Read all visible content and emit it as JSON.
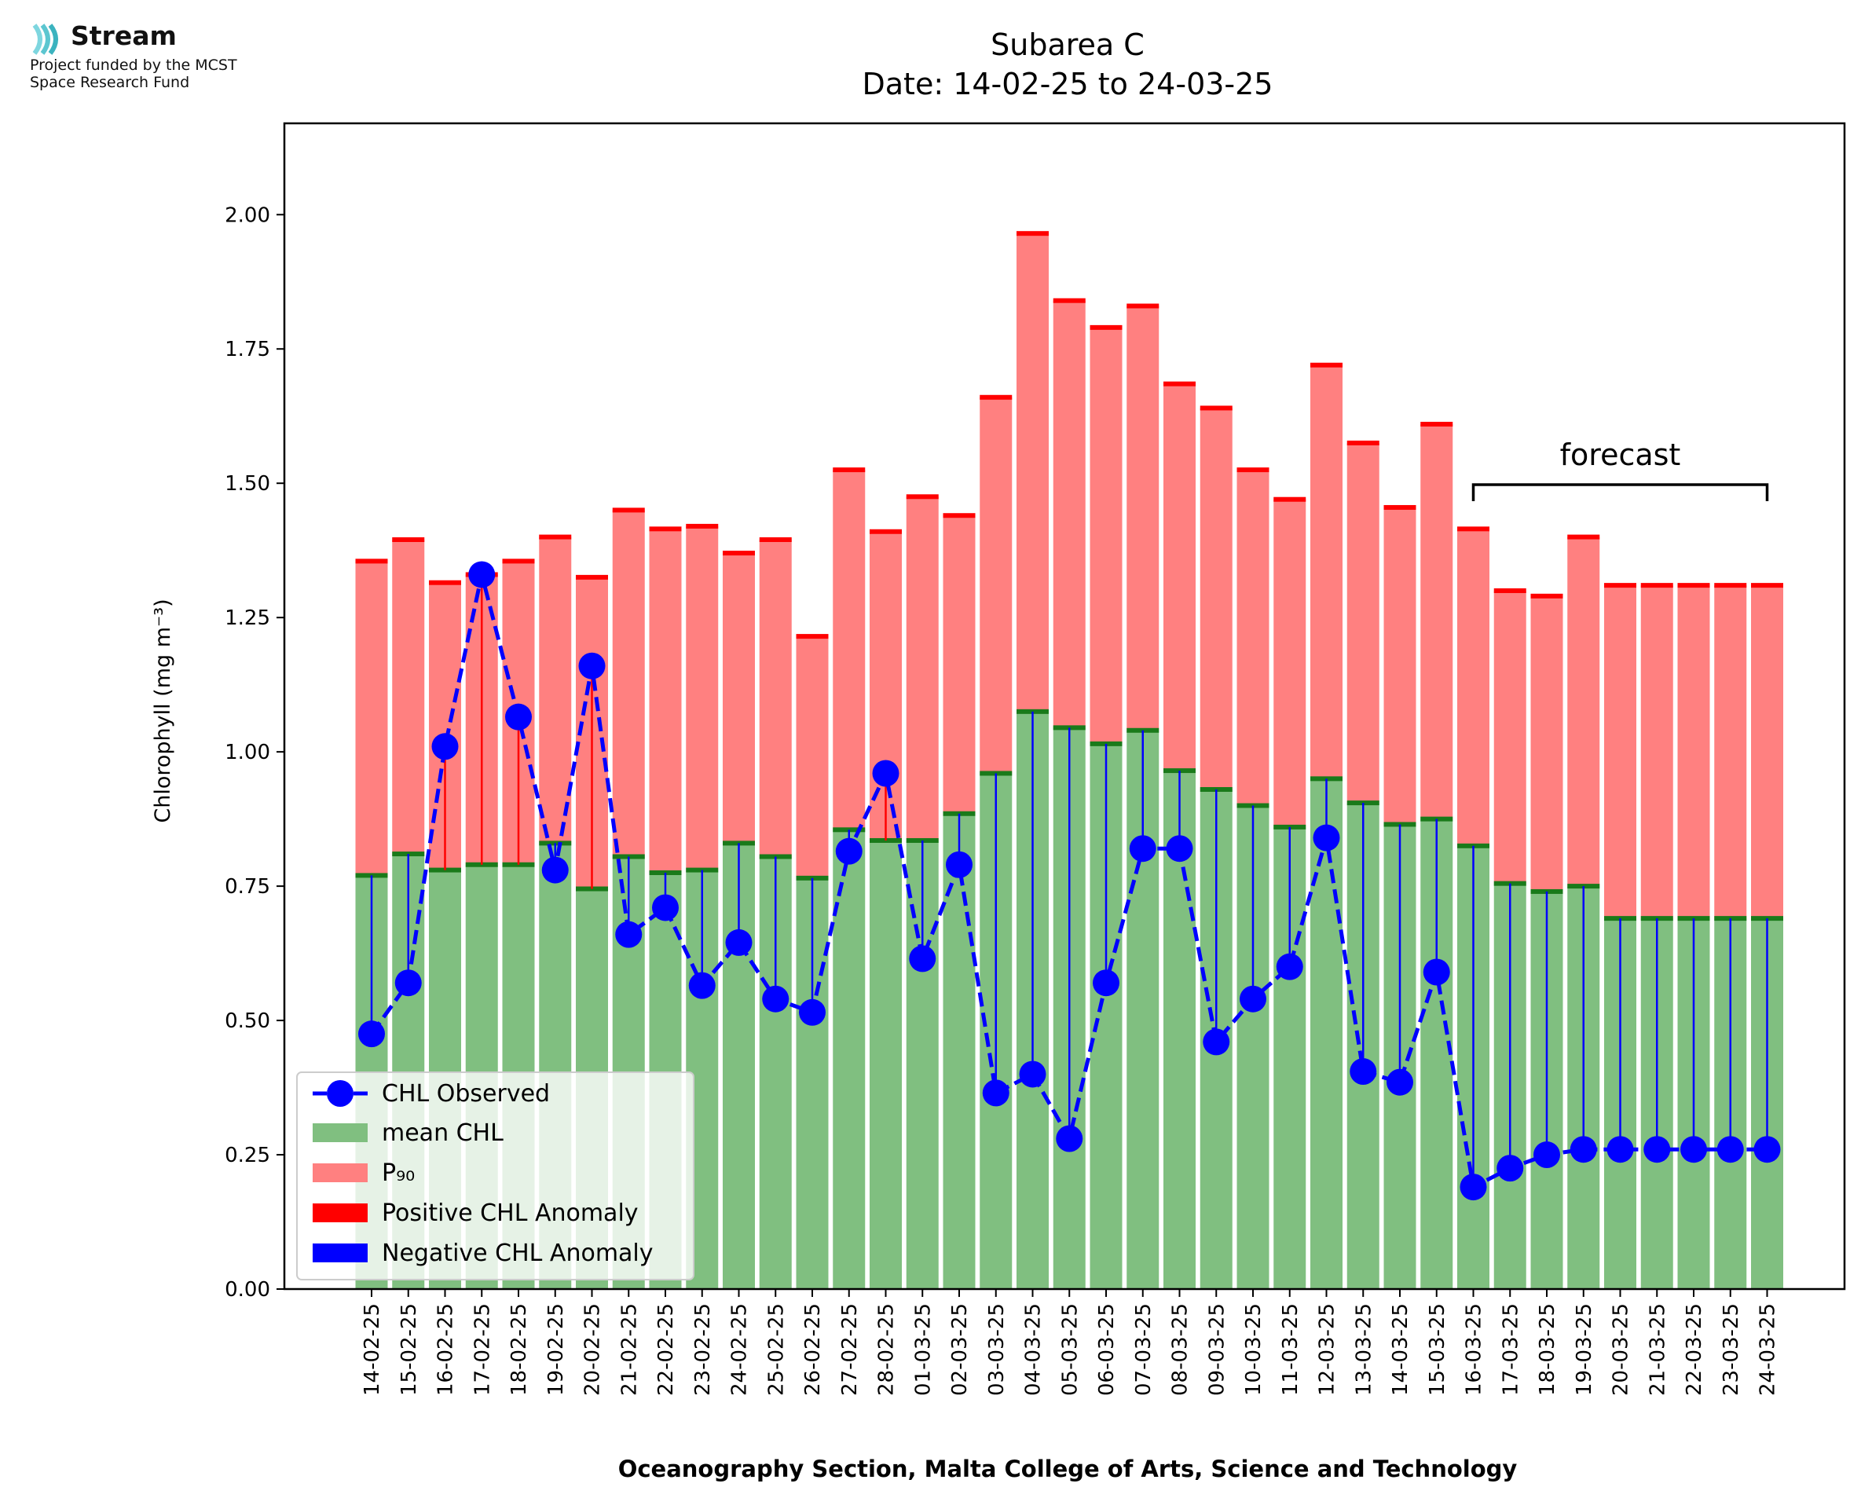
{
  "logo": {
    "name": "Stream",
    "line1": "Project funded by the MCST",
    "line2": "Space Research Fund"
  },
  "chart_data": {
    "type": "bar",
    "title": "Subarea C",
    "subtitle": "Date: 14-02-25 to 24-03-25",
    "xlabel": "Oceanography Section, Malta College of Arts, Science and Technology",
    "ylabel": "Chlorophyll (mg m⁻³)",
    "ylim": [
      0,
      2.17
    ],
    "yticks": [
      "0.00",
      "0.25",
      "0.50",
      "0.75",
      "1.00",
      "1.25",
      "1.50",
      "1.75",
      "2.00"
    ],
    "grid": false,
    "legend_position": "lower-left",
    "categories": [
      "14-02-25",
      "15-02-25",
      "16-02-25",
      "17-02-25",
      "18-02-25",
      "19-02-25",
      "20-02-25",
      "21-02-25",
      "22-02-25",
      "23-02-25",
      "24-02-25",
      "25-02-25",
      "26-02-25",
      "27-02-25",
      "28-02-25",
      "01-03-25",
      "02-03-25",
      "03-03-25",
      "04-03-25",
      "05-03-25",
      "06-03-25",
      "07-03-25",
      "08-03-25",
      "09-03-25",
      "10-03-25",
      "11-03-25",
      "12-03-25",
      "13-03-25",
      "14-03-25",
      "15-03-25",
      "16-03-25",
      "17-03-25",
      "18-03-25",
      "19-03-25",
      "20-03-25",
      "21-03-25",
      "22-03-25",
      "23-03-25",
      "24-03-25"
    ],
    "series": [
      {
        "name": "CHL Observed",
        "type": "line",
        "color": "#0000ff",
        "values": [
          0.475,
          0.57,
          1.01,
          1.33,
          1.065,
          0.78,
          1.16,
          0.66,
          0.71,
          0.565,
          0.645,
          0.54,
          0.515,
          0.815,
          0.96,
          0.615,
          0.79,
          0.365,
          0.4,
          0.28,
          0.57,
          0.82,
          0.82,
          0.46,
          0.54,
          0.6,
          0.84,
          0.405,
          0.385,
          0.59,
          0.19,
          0.225,
          0.25,
          0.26,
          0.26,
          0.26,
          0.26,
          0.26,
          0.26
        ]
      },
      {
        "name": "mean CHL",
        "type": "bar",
        "color": "#80bf80",
        "values": [
          0.77,
          0.81,
          0.78,
          0.79,
          0.79,
          0.83,
          0.745,
          0.805,
          0.775,
          0.78,
          0.83,
          0.805,
          0.765,
          0.855,
          0.835,
          0.835,
          0.885,
          0.96,
          1.075,
          1.045,
          1.015,
          1.04,
          0.965,
          0.93,
          0.9,
          0.86,
          0.95,
          0.905,
          0.865,
          0.875,
          0.825,
          0.755,
          0.74,
          0.75,
          0.69,
          0.69,
          0.69,
          0.69,
          0.69
        ]
      },
      {
        "name": "P₉₀",
        "type": "bar",
        "color": "#ff8080",
        "values": [
          1.355,
          1.395,
          1.315,
          1.33,
          1.355,
          1.4,
          1.325,
          1.45,
          1.415,
          1.42,
          1.37,
          1.395,
          1.215,
          1.525,
          1.41,
          1.475,
          1.44,
          1.66,
          1.965,
          1.84,
          1.79,
          1.83,
          1.685,
          1.64,
          1.525,
          1.47,
          1.72,
          1.575,
          1.455,
          1.61,
          1.415,
          1.3,
          1.29,
          1.4,
          1.31,
          1.31,
          1.31,
          1.31,
          1.31
        ]
      },
      {
        "name": "Positive CHL Anomaly",
        "type": "marker",
        "color": "#ff0000"
      },
      {
        "name": "Negative CHL Anomaly",
        "type": "marker",
        "color": "#0000ff"
      }
    ],
    "annotations": [
      {
        "text": "forecast",
        "from": "16-03-25",
        "to": "24-03-25"
      }
    ]
  }
}
